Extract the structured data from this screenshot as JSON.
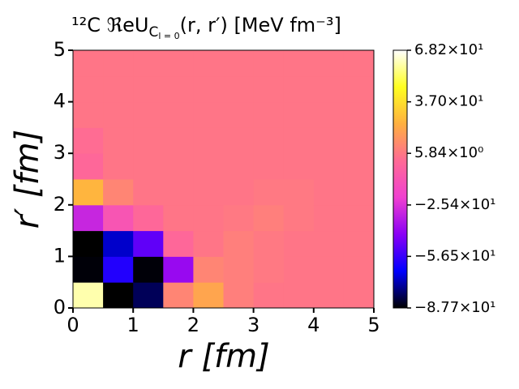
{
  "chart_data": {
    "type": "heatmap",
    "title": {
      "prefix": "¹²C ℜeU",
      "subscript": "C",
      "subsubscript": "l = 0",
      "suffix": "(r, r′) [MeV fm⁻³]"
    },
    "xlabel": "r [fm]",
    "ylabel": "r′ [fm]",
    "xlim": [
      0,
      5
    ],
    "ylim": [
      0,
      5
    ],
    "xticks": [
      0,
      1,
      2,
      3,
      4,
      5
    ],
    "yticks": [
      0,
      1,
      2,
      3,
      4,
      5
    ],
    "z": [
      [
        60,
        -88,
        -80,
        10,
        20,
        8,
        5,
        5,
        5,
        5
      ],
      [
        -87,
        -60,
        -87,
        -40,
        10,
        8,
        6,
        5,
        5,
        5
      ],
      [
        -88,
        -70,
        -50,
        0,
        5,
        8,
        6,
        5,
        5,
        5
      ],
      [
        -30,
        -10,
        0,
        5,
        5,
        6,
        8,
        6,
        5,
        5
      ],
      [
        25,
        10,
        5,
        5,
        5,
        5,
        6,
        6,
        5,
        5
      ],
      [
        0,
        5,
        5,
        5,
        5,
        5,
        5,
        5,
        5,
        5
      ],
      [
        2,
        5,
        5,
        5,
        5,
        5,
        5,
        5,
        5,
        5
      ],
      [
        5,
        5,
        5,
        5,
        5,
        5,
        5,
        5,
        5,
        5
      ],
      [
        5,
        5,
        5,
        5,
        5,
        5,
        5,
        5,
        5,
        5
      ],
      [
        5,
        5,
        5,
        5,
        5,
        5,
        5,
        5,
        5,
        5
      ]
    ],
    "zlim": [
      -87.7,
      68.2
    ],
    "zticks": [
      {
        "value": 68.2,
        "label": "6.82×10¹"
      },
      {
        "value": 37.0,
        "label": "3.70×10¹"
      },
      {
        "value": 5.84,
        "label": "5.84×10⁰"
      },
      {
        "value": -25.4,
        "label": "−2.54×10¹"
      },
      {
        "value": -56.5,
        "label": "−5.65×10¹"
      },
      {
        "value": -87.7,
        "label": "−8.77×10¹"
      }
    ],
    "colormap": [
      "#000000",
      "#0000ff",
      "#8a00f5",
      "#f040d0",
      "#ff6a95",
      "#ffb040",
      "#ffff20",
      "#ffffff"
    ]
  }
}
